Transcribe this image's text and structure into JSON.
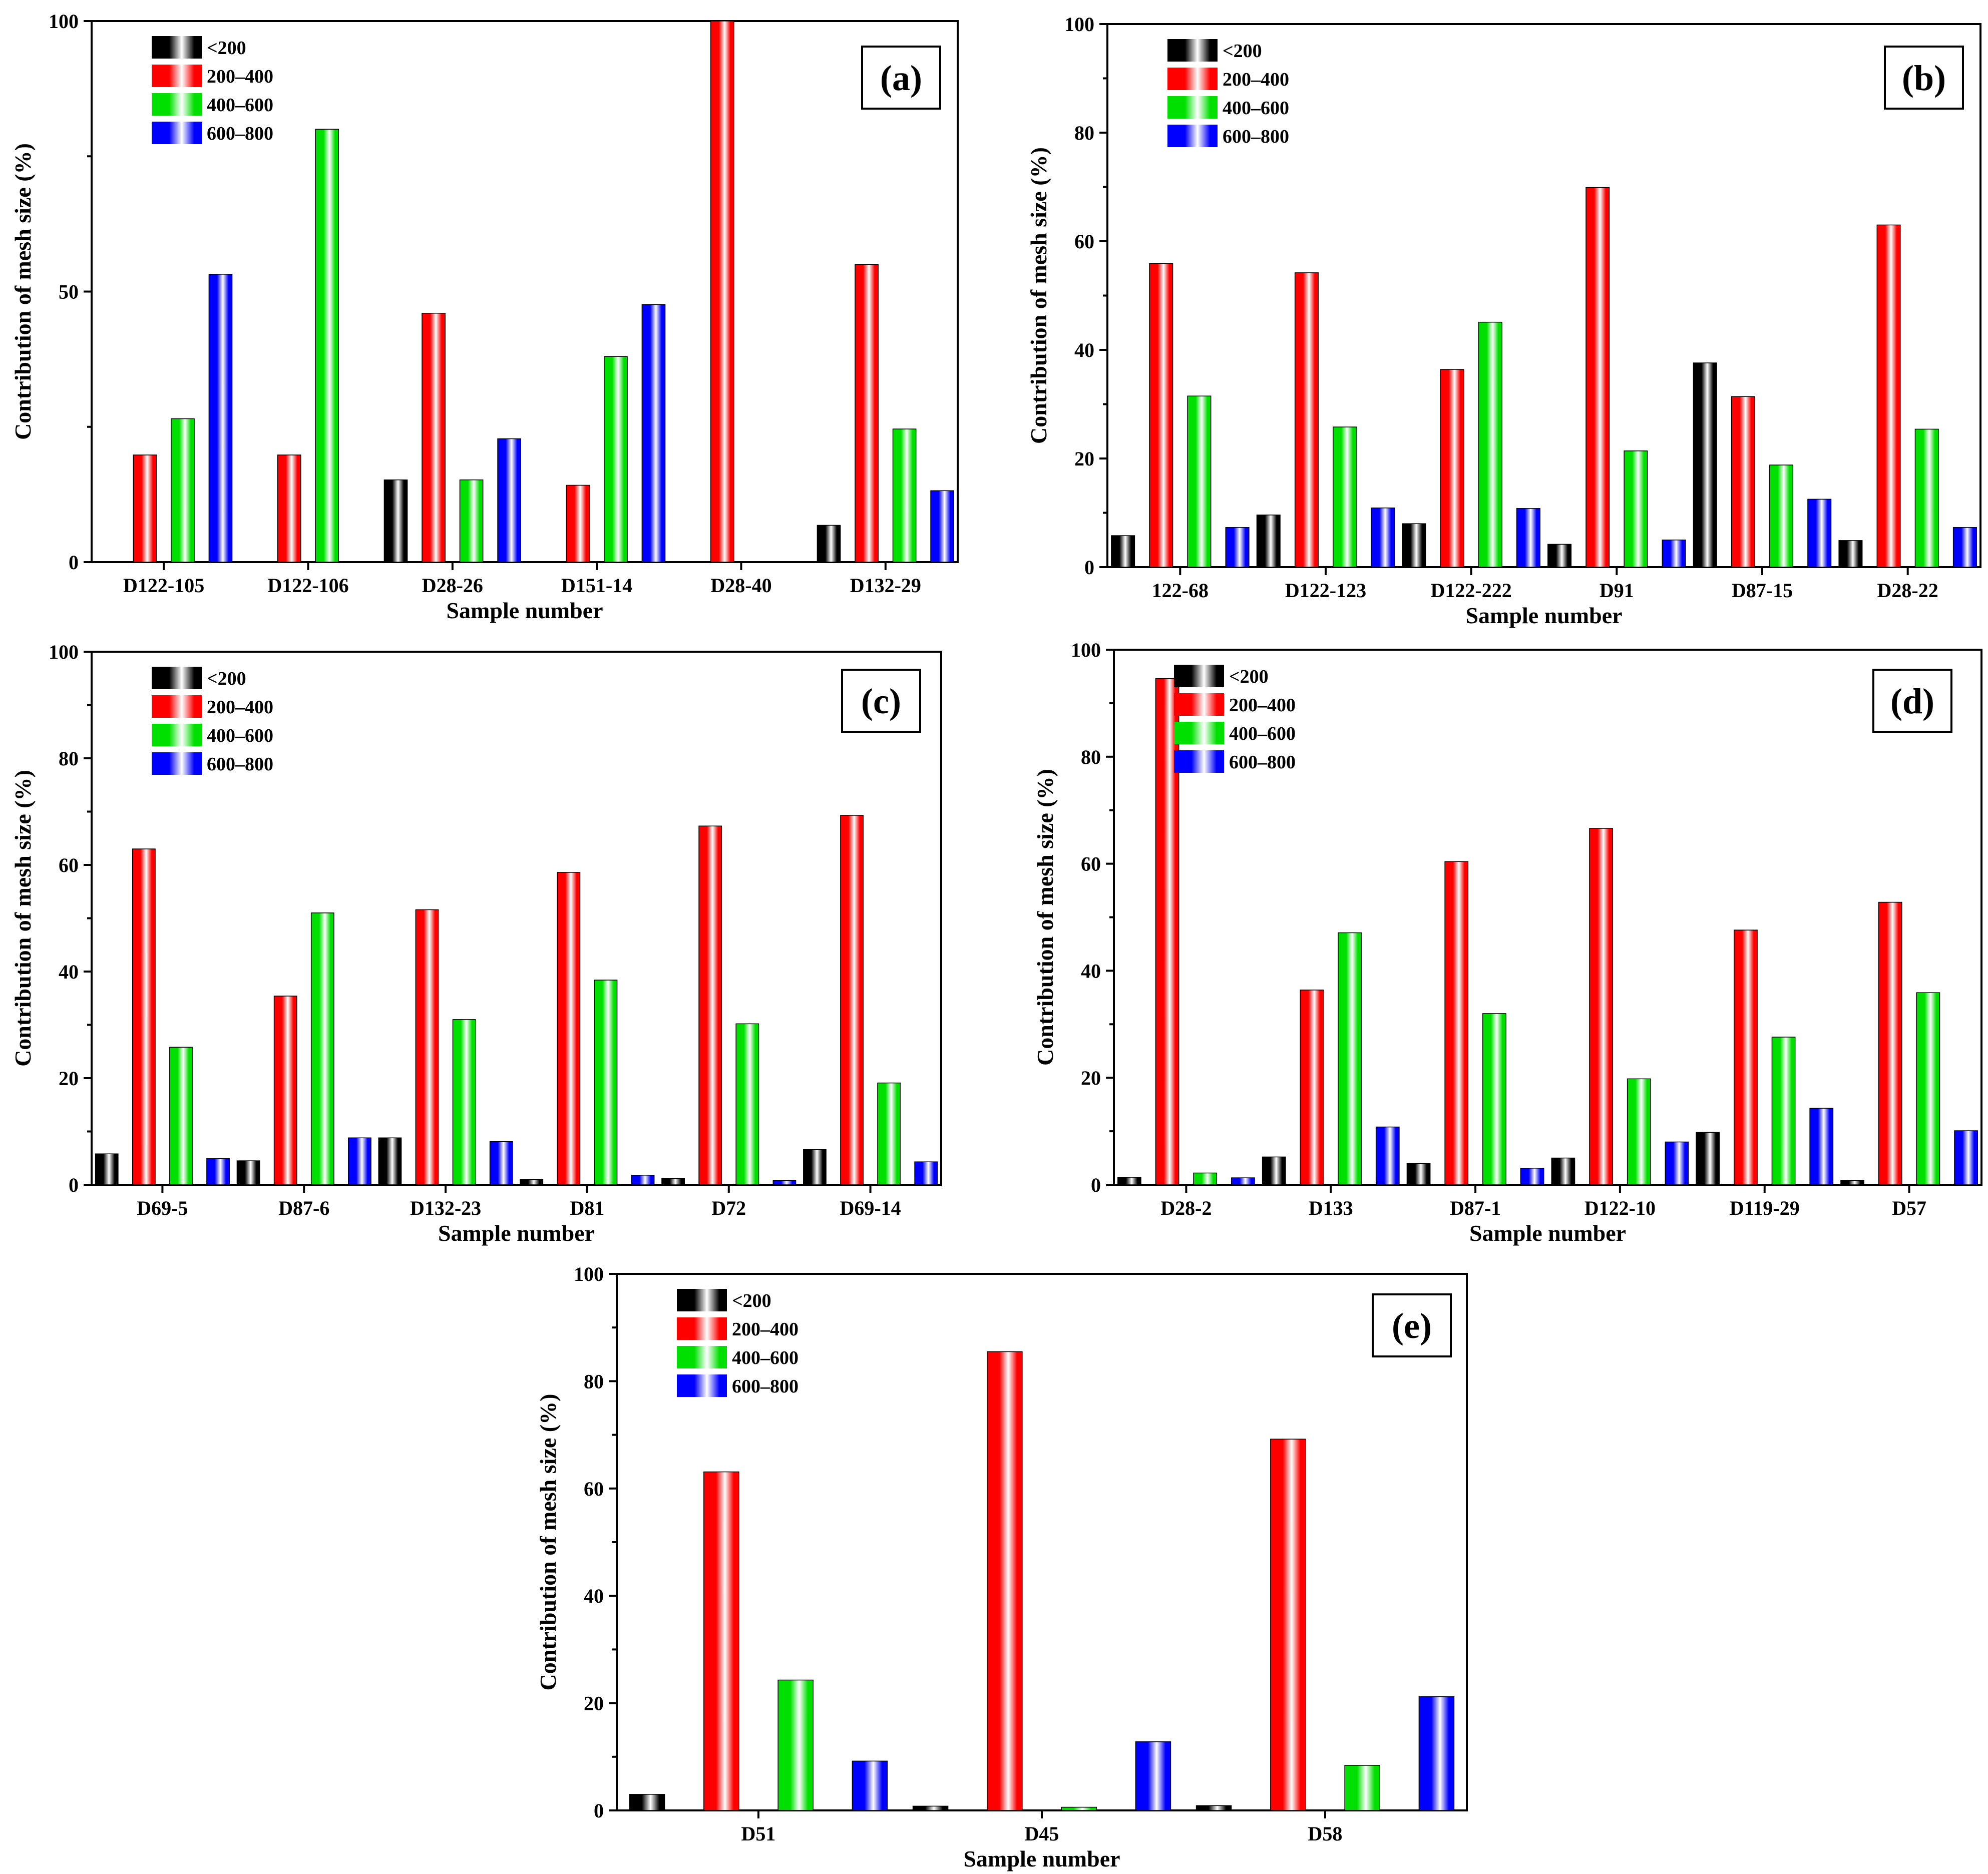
{
  "series_styles": [
    {
      "name": "<200",
      "color": "#000000"
    },
    {
      "name": "200–400",
      "color": "#ff0000"
    },
    {
      "name": "400–600",
      "color": "#00e000"
    },
    {
      "name": "600–800",
      "color": "#0000ff"
    }
  ],
  "chart_data": [
    {
      "type": "bar",
      "panel": "(a)",
      "xlabel": "Sample number",
      "ylabel": "Contribution of mesh size (%)",
      "ylim": [
        0,
        100
      ],
      "yticks": [
        0,
        50,
        100
      ],
      "categories": [
        "D122-105",
        "D122-106",
        "D28-26",
        "D151-14",
        "D28-40",
        "D132-29"
      ],
      "series": [
        {
          "name": "<200",
          "values": [
            0,
            0,
            15.2,
            0,
            0,
            6.8
          ]
        },
        {
          "name": "200–400",
          "values": [
            19.8,
            19.8,
            46,
            14.2,
            100,
            55
          ]
        },
        {
          "name": "400–600",
          "values": [
            26.5,
            80,
            15.2,
            38,
            0,
            24.6
          ]
        },
        {
          "name": "600–800",
          "values": [
            53.2,
            0,
            22.8,
            47.6,
            0,
            13.2
          ]
        }
      ]
    },
    {
      "type": "bar",
      "panel": "(b)",
      "xlabel": "Sample number",
      "ylabel": "Contribution of mesh size (%)",
      "ylim": [
        0,
        100
      ],
      "yticks": [
        0,
        20,
        40,
        60,
        80,
        100
      ],
      "categories": [
        "122-68",
        "D122-123",
        "D122-222",
        "D91",
        "D87-15",
        "D28-22"
      ],
      "series": [
        {
          "name": "<200",
          "values": [
            5.8,
            9.6,
            8,
            4.2,
            37.6,
            4.9
          ]
        },
        {
          "name": "200–400",
          "values": [
            55.9,
            54.2,
            36.4,
            69.9,
            31.4,
            63
          ]
        },
        {
          "name": "400–600",
          "values": [
            31.5,
            25.8,
            45.1,
            21.4,
            18.8,
            25.4
          ]
        },
        {
          "name": "600–800",
          "values": [
            7.3,
            10.9,
            10.8,
            5,
            12.5,
            7.3
          ]
        }
      ]
    },
    {
      "type": "bar",
      "panel": "(c)",
      "xlabel": "Sample number",
      "ylabel": "Contribution of mesh size (%)",
      "ylim": [
        0,
        100
      ],
      "yticks": [
        0,
        20,
        40,
        60,
        80,
        100
      ],
      "categories": [
        "D69-5",
        "D87-6",
        "D132-23",
        "D81",
        "D72",
        "D69-14"
      ],
      "series": [
        {
          "name": "<200",
          "values": [
            5.8,
            4.5,
            8.8,
            1,
            1.2,
            6.6
          ]
        },
        {
          "name": "200–400",
          "values": [
            63,
            35.4,
            51.6,
            58.6,
            67.3,
            69.3
          ]
        },
        {
          "name": "400–600",
          "values": [
            25.8,
            51,
            31,
            38.4,
            30.2,
            19.1
          ]
        },
        {
          "name": "600–800",
          "values": [
            4.9,
            8.8,
            8.1,
            1.8,
            0.8,
            4.3
          ]
        }
      ]
    },
    {
      "type": "bar",
      "panel": "(d)",
      "xlabel": "Sample number",
      "ylabel": "Contribution of mesh size (%)",
      "ylim": [
        0,
        100
      ],
      "yticks": [
        0,
        20,
        40,
        60,
        80,
        100
      ],
      "categories": [
        "D28-2",
        "D133",
        "D87-1",
        "D122-10",
        "D119-29",
        "D57"
      ],
      "series": [
        {
          "name": "<200",
          "values": [
            1.4,
            5.2,
            4,
            5,
            9.8,
            0.8
          ]
        },
        {
          "name": "200–400",
          "values": [
            94.6,
            36.4,
            60.4,
            66.6,
            47.6,
            52.8
          ]
        },
        {
          "name": "400–600",
          "values": [
            2.2,
            47.1,
            32,
            19.8,
            27.6,
            35.9
          ]
        },
        {
          "name": "600–800",
          "values": [
            1.3,
            10.8,
            3.1,
            8,
            14.3,
            10.1
          ]
        }
      ]
    },
    {
      "type": "bar",
      "panel": "(e)",
      "xlabel": "Sample number",
      "ylabel": "Contribution of mesh size (%)",
      "ylim": [
        0,
        100
      ],
      "yticks": [
        0,
        20,
        40,
        60,
        80,
        100
      ],
      "categories": [
        "D51",
        "D45",
        "D58"
      ],
      "series": [
        {
          "name": "<200",
          "values": [
            3,
            0.8,
            0.9
          ]
        },
        {
          "name": "200–400",
          "values": [
            63.1,
            85.5,
            69.2
          ]
        },
        {
          "name": "400–600",
          "values": [
            24.3,
            0.6,
            8.4
          ]
        },
        {
          "name": "600–800",
          "values": [
            9.2,
            12.8,
            21.2
          ]
        }
      ]
    }
  ]
}
